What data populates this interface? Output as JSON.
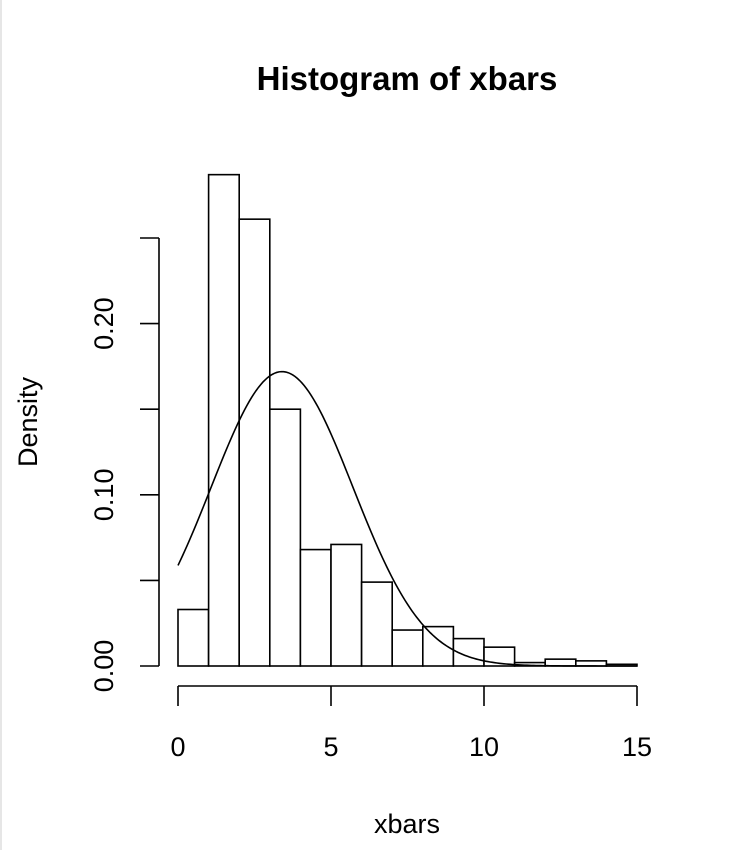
{
  "chart_data": {
    "type": "bar",
    "title": "Histogram of xbars",
    "xlabel": "xbars",
    "ylabel": "Density",
    "xlim": [
      0,
      15
    ],
    "ylim": [
      0,
      0.25
    ],
    "x_ticks": [
      0,
      5,
      10,
      15
    ],
    "x_tick_labels": [
      "0",
      "5",
      "10",
      "15"
    ],
    "y_ticks": [
      0,
      0.05,
      0.1,
      0.15,
      0.2,
      0.25
    ],
    "y_tick_labels": [
      "0.00",
      "",
      "0.10",
      "",
      "0.20",
      ""
    ],
    "bins": [
      {
        "x0": 0,
        "x1": 1,
        "density": 0.033
      },
      {
        "x0": 1,
        "x1": 2,
        "density": 0.287
      },
      {
        "x0": 2,
        "x1": 3,
        "density": 0.261
      },
      {
        "x0": 3,
        "x1": 4,
        "density": 0.15
      },
      {
        "x0": 4,
        "x1": 5,
        "density": 0.068
      },
      {
        "x0": 5,
        "x1": 6,
        "density": 0.071
      },
      {
        "x0": 6,
        "x1": 7,
        "density": 0.049
      },
      {
        "x0": 7,
        "x1": 8,
        "density": 0.021
      },
      {
        "x0": 8,
        "x1": 9,
        "density": 0.023
      },
      {
        "x0": 9,
        "x1": 10,
        "density": 0.016
      },
      {
        "x0": 10,
        "x1": 11,
        "density": 0.011
      },
      {
        "x0": 11,
        "x1": 12,
        "density": 0.002
      },
      {
        "x0": 12,
        "x1": 13,
        "density": 0.004
      },
      {
        "x0": 13,
        "x1": 14,
        "density": 0.003
      },
      {
        "x0": 14,
        "x1": 15,
        "density": 0.001
      }
    ],
    "overlay_curve": {
      "type": "normal-density",
      "mean": 3.4,
      "sd": 2.32,
      "x_range": [
        0,
        15
      ]
    },
    "grid": false,
    "legend": "none"
  }
}
